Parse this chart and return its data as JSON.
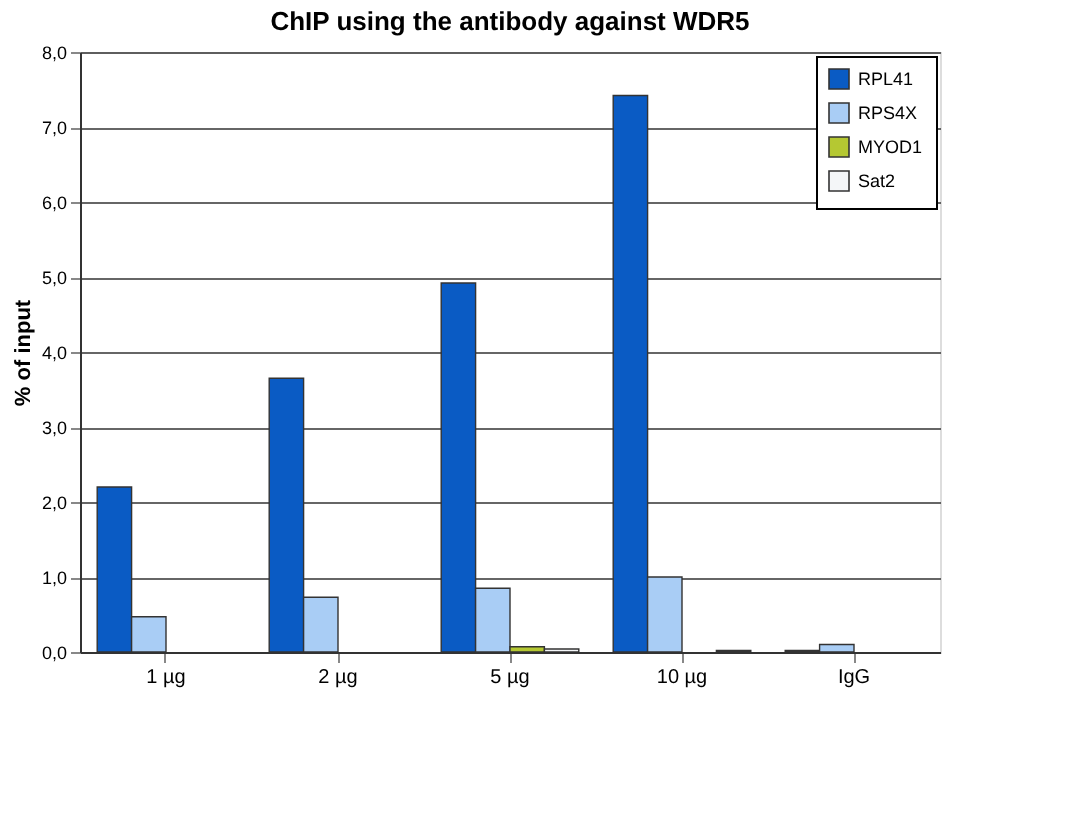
{
  "chart_data": {
    "type": "bar",
    "title": "ChIP using the antibody against WDR5",
    "ylabel": "% of input",
    "categories": [
      "1 µg",
      "2 µg",
      "5 µg",
      "10 µg",
      "IgG"
    ],
    "series": [
      {
        "name": "RPL41",
        "color": "#0a5bc4",
        "values": [
          2.2,
          3.65,
          4.92,
          7.42,
          0.02
        ]
      },
      {
        "name": "RPS4X",
        "color": "#a9cdf5",
        "values": [
          0.47,
          0.73,
          0.85,
          1.0,
          0.1
        ]
      },
      {
        "name": "MYOD1",
        "color": "#b5c832",
        "values": [
          0,
          0,
          0.07,
          null,
          0
        ]
      },
      {
        "name": "Sat2",
        "color": "#f4f6f8",
        "values": [
          0,
          0,
          0.04,
          0.02,
          0
        ]
      }
    ],
    "ylim": [
      0,
      8
    ],
    "yticks": [
      {
        "value": 0,
        "label": "0,0"
      },
      {
        "value": 1,
        "label": "1,0"
      },
      {
        "value": 2,
        "label": "2,0"
      },
      {
        "value": 3,
        "label": "3,0"
      },
      {
        "value": 4,
        "label": "4,0"
      },
      {
        "value": 5,
        "label": "5,0"
      },
      {
        "value": 6,
        "label": "6,0"
      },
      {
        "value": 7,
        "label": "7,0"
      },
      {
        "value": 8,
        "label": "8,0"
      }
    ],
    "grid": "y",
    "legend": "top right"
  }
}
